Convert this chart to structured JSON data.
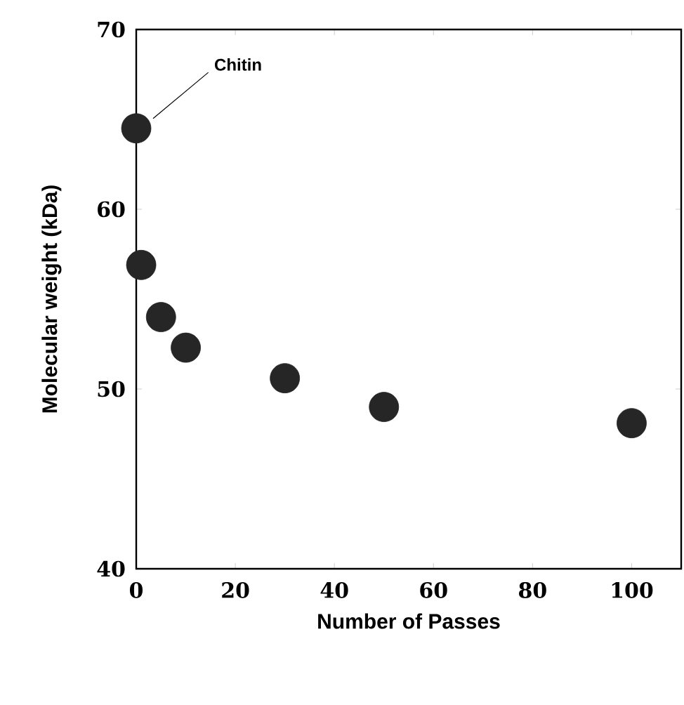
{
  "chart_data": {
    "type": "scatter",
    "xlabel": "Number of Passes",
    "ylabel": "Molecular weight (kDa)",
    "x": [
      0,
      1,
      5,
      10,
      30,
      50,
      100
    ],
    "series": [
      {
        "color": "#262626",
        "values": [
          64.5,
          56.9,
          54.0,
          52.3,
          50.6,
          49.0,
          48.1
        ]
      }
    ],
    "xlim": [
      0,
      110
    ],
    "xticks": [
      0,
      20,
      40,
      60,
      80,
      100
    ],
    "ylim": [
      40,
      70
    ],
    "yticks": [
      40,
      50,
      60,
      70
    ],
    "grid": false,
    "annotations": [
      "Chitin"
    ]
  }
}
